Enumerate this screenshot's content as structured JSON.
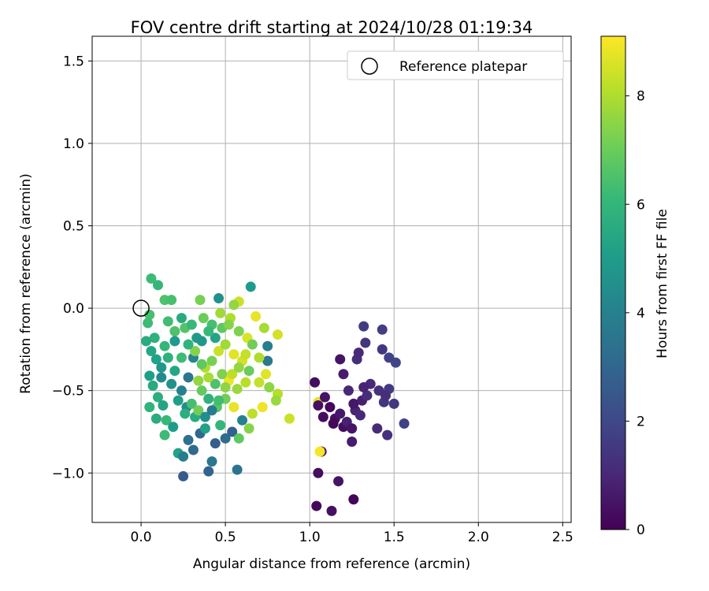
{
  "chart_data": {
    "type": "scatter",
    "title": "FOV centre drift starting at 2024/10/28 01:19:34",
    "xlabel": "Angular distance from reference (arcmin)",
    "ylabel": "Rotation from reference (arcmin)",
    "xlim": [
      -0.29,
      2.55
    ],
    "ylim": [
      -1.3,
      1.65
    ],
    "xticks": [
      0.0,
      0.5,
      1.0,
      1.5,
      2.0,
      2.5
    ],
    "xtick_labels": [
      "0.0",
      "0.5",
      "1.0",
      "1.5",
      "2.0",
      "2.5"
    ],
    "yticks": [
      -1.0,
      -0.5,
      0.0,
      0.5,
      1.0,
      1.5
    ],
    "ytick_labels": [
      "−1.0",
      "−0.5",
      "0.0",
      "0.5",
      "1.0",
      "1.5"
    ],
    "grid": true,
    "legend": {
      "position": "top-right",
      "entries": [
        "Reference platepar"
      ]
    },
    "reference_point": {
      "x": 0.0,
      "y": 0.0,
      "marker": "open-circle"
    },
    "colorbar": {
      "label": "Hours from first FF file",
      "range": [
        0,
        9.1
      ],
      "ticks": [
        0,
        2,
        4,
        6,
        8
      ],
      "tick_labels": [
        "0",
        "2",
        "4",
        "6",
        "8"
      ],
      "colormap": "viridis",
      "stops": [
        "#440154",
        "#482878",
        "#3e4989",
        "#31688e",
        "#26828e",
        "#1f9e89",
        "#35b779",
        "#6ece58",
        "#b5de2b",
        "#fde725"
      ]
    },
    "series": [
      {
        "marker_color_by": "hours",
        "points": [
          [
            0.06,
            0.18,
            6.2
          ],
          [
            0.1,
            0.14,
            6.0
          ],
          [
            0.14,
            0.05,
            6.5
          ],
          [
            0.18,
            0.05,
            6.4
          ],
          [
            0.35,
            0.05,
            7.2
          ],
          [
            0.46,
            0.06,
            4.6
          ],
          [
            0.65,
            0.13,
            5.0
          ],
          [
            0.58,
            0.04,
            8.4
          ],
          [
            0.55,
            0.02,
            7.6
          ],
          [
            0.05,
            -0.04,
            6.4
          ],
          [
            0.04,
            -0.09,
            6.2
          ],
          [
            0.08,
            -0.18,
            5.8
          ],
          [
            0.03,
            -0.2,
            5.6
          ],
          [
            0.06,
            -0.26,
            5.4
          ],
          [
            0.09,
            -0.31,
            5.2
          ],
          [
            0.14,
            -0.23,
            6.0
          ],
          [
            0.16,
            -0.08,
            6.3
          ],
          [
            0.2,
            -0.14,
            6.5
          ],
          [
            0.12,
            -0.36,
            4.8
          ],
          [
            0.05,
            -0.41,
            5.1
          ],
          [
            0.07,
            -0.47,
            5.5
          ],
          [
            0.1,
            -0.54,
            5.7
          ],
          [
            0.13,
            -0.59,
            5.3
          ],
          [
            0.05,
            -0.6,
            5.9
          ],
          [
            0.09,
            -0.67,
            5.6
          ],
          [
            0.15,
            -0.68,
            6.1
          ],
          [
            0.19,
            -0.72,
            5.0
          ],
          [
            0.14,
            -0.77,
            6.2
          ],
          [
            0.22,
            -0.88,
            5.2
          ],
          [
            0.25,
            -0.9,
            3.8
          ],
          [
            0.25,
            -1.02,
            2.6
          ],
          [
            0.28,
            -0.8,
            3.4
          ],
          [
            0.31,
            -0.86,
            3.1
          ],
          [
            0.35,
            -0.76,
            3.0
          ],
          [
            0.4,
            -0.99,
            2.9
          ],
          [
            0.42,
            -0.93,
            3.6
          ],
          [
            0.57,
            -0.98,
            3.5
          ],
          [
            0.44,
            -0.82,
            2.7
          ],
          [
            0.5,
            -0.79,
            3.2
          ],
          [
            0.54,
            -0.75,
            2.8
          ],
          [
            0.58,
            -0.79,
            6.8
          ],
          [
            0.47,
            -0.71,
            6.0
          ],
          [
            0.38,
            -0.73,
            5.2
          ],
          [
            0.32,
            -0.66,
            5.6
          ],
          [
            0.27,
            -0.6,
            4.4
          ],
          [
            0.24,
            -0.5,
            4.0
          ],
          [
            0.28,
            -0.42,
            3.6
          ],
          [
            0.31,
            -0.3,
            4.2
          ],
          [
            0.33,
            -0.18,
            5.0
          ],
          [
            0.26,
            -0.12,
            6.6
          ],
          [
            0.3,
            -0.1,
            6.1
          ],
          [
            0.37,
            -0.06,
            7.0
          ],
          [
            0.42,
            -0.1,
            6.4
          ],
          [
            0.47,
            -0.03,
            7.8
          ],
          [
            0.53,
            -0.06,
            8.0
          ],
          [
            0.58,
            -0.14,
            7.3
          ],
          [
            0.63,
            -0.18,
            8.6
          ],
          [
            0.68,
            -0.05,
            8.8
          ],
          [
            0.73,
            -0.12,
            7.9
          ],
          [
            0.75,
            -0.23,
            3.9
          ],
          [
            0.81,
            -0.16,
            8.5
          ],
          [
            0.75,
            -0.32,
            3.7
          ],
          [
            0.74,
            -0.4,
            8.7
          ],
          [
            0.7,
            -0.45,
            8.3
          ],
          [
            0.76,
            -0.48,
            7.5
          ],
          [
            0.81,
            -0.52,
            8.1
          ],
          [
            0.8,
            -0.56,
            7.7
          ],
          [
            0.72,
            -0.6,
            8.9
          ],
          [
            0.66,
            -0.64,
            8.2
          ],
          [
            0.64,
            -0.73,
            7.4
          ],
          [
            0.6,
            -0.68,
            4.0
          ],
          [
            0.55,
            -0.6,
            8.8
          ],
          [
            0.5,
            -0.55,
            7.1
          ],
          [
            0.45,
            -0.6,
            6.7
          ],
          [
            0.4,
            -0.55,
            5.8
          ],
          [
            0.36,
            -0.5,
            6.9
          ],
          [
            0.34,
            -0.44,
            7.6
          ],
          [
            0.38,
            -0.36,
            8.0
          ],
          [
            0.42,
            -0.32,
            7.2
          ],
          [
            0.46,
            -0.26,
            8.4
          ],
          [
            0.5,
            -0.22,
            7.8
          ],
          [
            0.55,
            -0.28,
            8.7
          ],
          [
            0.6,
            -0.32,
            8.5
          ],
          [
            0.64,
            -0.38,
            7.0
          ],
          [
            0.62,
            -0.45,
            8.1
          ],
          [
            0.57,
            -0.49,
            7.7
          ],
          [
            0.52,
            -0.44,
            8.9
          ],
          [
            0.48,
            -0.4,
            7.3
          ],
          [
            0.44,
            -0.46,
            6.5
          ],
          [
            0.4,
            -0.42,
            7.9
          ],
          [
            0.36,
            -0.34,
            6.8
          ],
          [
            0.32,
            -0.26,
            7.4
          ],
          [
            0.28,
            -0.22,
            5.9
          ],
          [
            0.24,
            -0.3,
            6.2
          ],
          [
            0.2,
            -0.38,
            5.4
          ],
          [
            0.18,
            -0.46,
            4.6
          ],
          [
            0.22,
            -0.56,
            5.1
          ],
          [
            0.26,
            -0.64,
            5.7
          ],
          [
            0.3,
            -0.58,
            6.4
          ],
          [
            0.34,
            -0.62,
            7.1
          ],
          [
            0.38,
            -0.66,
            4.5
          ],
          [
            0.42,
            -0.62,
            3.8
          ],
          [
            0.46,
            -0.56,
            6.3
          ],
          [
            0.5,
            -0.48,
            7.5
          ],
          [
            0.54,
            -0.4,
            8.2
          ],
          [
            0.58,
            -0.36,
            7.6
          ],
          [
            0.62,
            -0.28,
            8.3
          ],
          [
            0.66,
            -0.22,
            7.1
          ],
          [
            0.7,
            -0.3,
            8.0
          ],
          [
            0.88,
            -0.67,
            8.4
          ],
          [
            0.36,
            -0.2,
            4.8
          ],
          [
            0.44,
            -0.18,
            5.3
          ],
          [
            0.48,
            -0.12,
            6.8
          ],
          [
            0.52,
            -0.1,
            7.4
          ],
          [
            0.4,
            -0.14,
            6.1
          ],
          [
            0.24,
            -0.06,
            5.5
          ],
          [
            0.2,
            -0.2,
            4.9
          ],
          [
            0.16,
            -0.3,
            5.8
          ],
          [
            0.12,
            -0.42,
            4.3
          ],
          [
            1.05,
            -0.57,
            8.7
          ],
          [
            1.07,
            -0.87,
            0.6
          ],
          [
            1.06,
            -0.87,
            9.0
          ],
          [
            1.03,
            -0.45,
            0.3
          ],
          [
            1.05,
            -0.59,
            0.4
          ],
          [
            1.09,
            -0.54,
            0.5
          ],
          [
            1.12,
            -0.6,
            0.2
          ],
          [
            1.15,
            -0.67,
            0.4
          ],
          [
            1.18,
            -0.64,
            0.6
          ],
          [
            1.2,
            -0.72,
            0.3
          ],
          [
            1.22,
            -0.69,
            0.8
          ],
          [
            1.25,
            -0.73,
            0.5
          ],
          [
            1.25,
            -0.81,
            0.7
          ],
          [
            1.27,
            -0.62,
            0.9
          ],
          [
            1.3,
            -0.65,
            1.0
          ],
          [
            1.31,
            -0.56,
            0.8
          ],
          [
            1.34,
            -0.53,
            1.2
          ],
          [
            1.36,
            -0.46,
            1.1
          ],
          [
            1.32,
            -0.48,
            0.9
          ],
          [
            1.23,
            -0.5,
            1.0
          ],
          [
            1.26,
            -0.58,
            0.6
          ],
          [
            1.2,
            -0.4,
            0.7
          ],
          [
            1.18,
            -0.31,
            0.5
          ],
          [
            1.28,
            -0.31,
            1.2
          ],
          [
            1.29,
            -0.27,
            1.1
          ],
          [
            1.33,
            -0.21,
            1.4
          ],
          [
            1.32,
            -0.11,
            1.6
          ],
          [
            1.43,
            -0.13,
            1.7
          ],
          [
            1.43,
            -0.25,
            1.5
          ],
          [
            1.47,
            -0.3,
            1.8
          ],
          [
            1.51,
            -0.33,
            1.9
          ],
          [
            1.41,
            -0.5,
            1.3
          ],
          [
            1.44,
            -0.57,
            1.4
          ],
          [
            1.47,
            -0.49,
            1.6
          ],
          [
            1.5,
            -0.58,
            1.5
          ],
          [
            1.45,
            -0.53,
            1.2
          ],
          [
            1.56,
            -0.7,
            1.8
          ],
          [
            1.4,
            -0.73,
            1.1
          ],
          [
            1.46,
            -0.77,
            1.3
          ],
          [
            1.05,
            -1.0,
            0.3
          ],
          [
            1.17,
            -1.05,
            0.5
          ],
          [
            1.04,
            -1.2,
            0.2
          ],
          [
            1.13,
            -1.23,
            0.4
          ],
          [
            1.26,
            -1.16,
            0.1
          ],
          [
            1.08,
            -0.66,
            0.3
          ],
          [
            1.14,
            -0.7,
            0.2
          ]
        ]
      }
    ]
  }
}
